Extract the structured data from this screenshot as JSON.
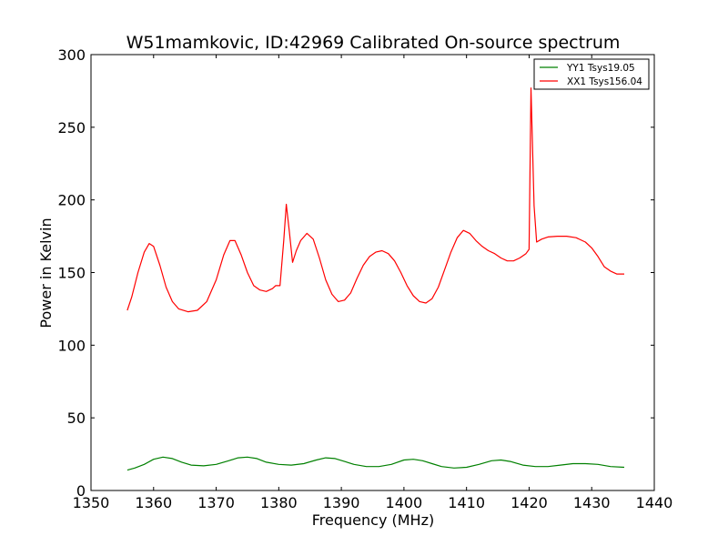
{
  "chart_data": {
    "type": "line",
    "title": "W51mamkovic, ID:42969 Calibrated On-source spectrum",
    "xlabel": "Frequency (MHz)",
    "ylabel": "Power in Kelvin",
    "xlim": [
      1350,
      1440
    ],
    "ylim": [
      0,
      300
    ],
    "xticks": [
      1350,
      1360,
      1370,
      1380,
      1390,
      1400,
      1410,
      1420,
      1430,
      1440
    ],
    "yticks": [
      0,
      50,
      100,
      150,
      200,
      250,
      300
    ],
    "grid": false,
    "legend_position": "top-right",
    "series": [
      {
        "name": "YY1 Tsys19.05",
        "color": "#008000",
        "points": [
          [
            1355.8,
            14
          ],
          [
            1357.0,
            15.5
          ],
          [
            1358.5,
            18
          ],
          [
            1360.0,
            21.5
          ],
          [
            1361.5,
            23
          ],
          [
            1363.0,
            22
          ],
          [
            1364.5,
            19.5
          ],
          [
            1366.0,
            17.5
          ],
          [
            1368.0,
            17
          ],
          [
            1370.0,
            18
          ],
          [
            1372.0,
            20.5
          ],
          [
            1373.5,
            22.5
          ],
          [
            1375.0,
            23
          ],
          [
            1376.5,
            22
          ],
          [
            1378.0,
            19.5
          ],
          [
            1380.0,
            18
          ],
          [
            1382.0,
            17.5
          ],
          [
            1384.0,
            18.5
          ],
          [
            1386.0,
            21
          ],
          [
            1387.5,
            22.5
          ],
          [
            1389.0,
            22
          ],
          [
            1390.5,
            20
          ],
          [
            1392.0,
            18
          ],
          [
            1394.0,
            16.5
          ],
          [
            1396.0,
            16.5
          ],
          [
            1398.0,
            18
          ],
          [
            1400.0,
            21
          ],
          [
            1401.5,
            21.5
          ],
          [
            1403.0,
            20.5
          ],
          [
            1404.5,
            18.5
          ],
          [
            1406.0,
            16.5
          ],
          [
            1408.0,
            15.5
          ],
          [
            1410.0,
            16
          ],
          [
            1412.0,
            18
          ],
          [
            1414.0,
            20.5
          ],
          [
            1415.5,
            21
          ],
          [
            1417.0,
            20
          ],
          [
            1419.0,
            17.5
          ],
          [
            1421.0,
            16.5
          ],
          [
            1423.0,
            16.5
          ],
          [
            1425.0,
            17.5
          ],
          [
            1427.0,
            18.5
          ],
          [
            1429.0,
            18.5
          ],
          [
            1431.0,
            18
          ],
          [
            1433.0,
            16.5
          ],
          [
            1435.2,
            16
          ]
        ]
      },
      {
        "name": "XX1 Tsys156.04",
        "color": "#ff0000",
        "points": [
          [
            1355.8,
            124
          ],
          [
            1356.5,
            133
          ],
          [
            1357.5,
            150
          ],
          [
            1358.5,
            164
          ],
          [
            1359.3,
            170
          ],
          [
            1360.0,
            168
          ],
          [
            1361.0,
            155
          ],
          [
            1362.0,
            140
          ],
          [
            1363.0,
            130
          ],
          [
            1364.0,
            125
          ],
          [
            1365.5,
            123
          ],
          [
            1367.0,
            124
          ],
          [
            1368.5,
            130
          ],
          [
            1370.0,
            145
          ],
          [
            1371.2,
            162
          ],
          [
            1372.2,
            172
          ],
          [
            1373.0,
            172
          ],
          [
            1374.0,
            162
          ],
          [
            1375.0,
            150
          ],
          [
            1376.0,
            141
          ],
          [
            1377.0,
            138
          ],
          [
            1378.0,
            137
          ],
          [
            1379.0,
            139
          ],
          [
            1379.5,
            141
          ],
          [
            1380.2,
            141
          ],
          [
            1380.8,
            172
          ],
          [
            1381.2,
            197
          ],
          [
            1381.7,
            178
          ],
          [
            1382.2,
            157
          ],
          [
            1382.8,
            165
          ],
          [
            1383.5,
            172
          ],
          [
            1384.5,
            177
          ],
          [
            1385.5,
            173
          ],
          [
            1386.5,
            160
          ],
          [
            1387.5,
            145
          ],
          [
            1388.5,
            135
          ],
          [
            1389.5,
            130
          ],
          [
            1390.5,
            131
          ],
          [
            1391.5,
            136
          ],
          [
            1392.5,
            146
          ],
          [
            1393.5,
            155
          ],
          [
            1394.5,
            161
          ],
          [
            1395.5,
            164
          ],
          [
            1396.5,
            165
          ],
          [
            1397.5,
            163
          ],
          [
            1398.5,
            158
          ],
          [
            1399.5,
            150
          ],
          [
            1400.5,
            141
          ],
          [
            1401.5,
            134
          ],
          [
            1402.5,
            130
          ],
          [
            1403.5,
            129
          ],
          [
            1404.5,
            132
          ],
          [
            1405.5,
            140
          ],
          [
            1406.5,
            152
          ],
          [
            1407.5,
            164
          ],
          [
            1408.5,
            174
          ],
          [
            1409.5,
            179
          ],
          [
            1410.5,
            177
          ],
          [
            1411.5,
            172
          ],
          [
            1412.5,
            168
          ],
          [
            1413.5,
            165
          ],
          [
            1414.5,
            163
          ],
          [
            1415.5,
            160
          ],
          [
            1416.5,
            158
          ],
          [
            1417.5,
            158
          ],
          [
            1418.5,
            160
          ],
          [
            1419.5,
            163
          ],
          [
            1420.0,
            166
          ],
          [
            1420.3,
            277
          ],
          [
            1420.8,
            196
          ],
          [
            1421.2,
            171
          ],
          [
            1422.0,
            173
          ],
          [
            1423.0,
            174.5
          ],
          [
            1424.5,
            175
          ],
          [
            1426.0,
            175
          ],
          [
            1427.5,
            174
          ],
          [
            1429.0,
            171
          ],
          [
            1430.0,
            167
          ],
          [
            1431.0,
            161
          ],
          [
            1432.0,
            154
          ],
          [
            1433.0,
            151
          ],
          [
            1434.0,
            149
          ],
          [
            1435.2,
            149
          ]
        ]
      }
    ]
  }
}
